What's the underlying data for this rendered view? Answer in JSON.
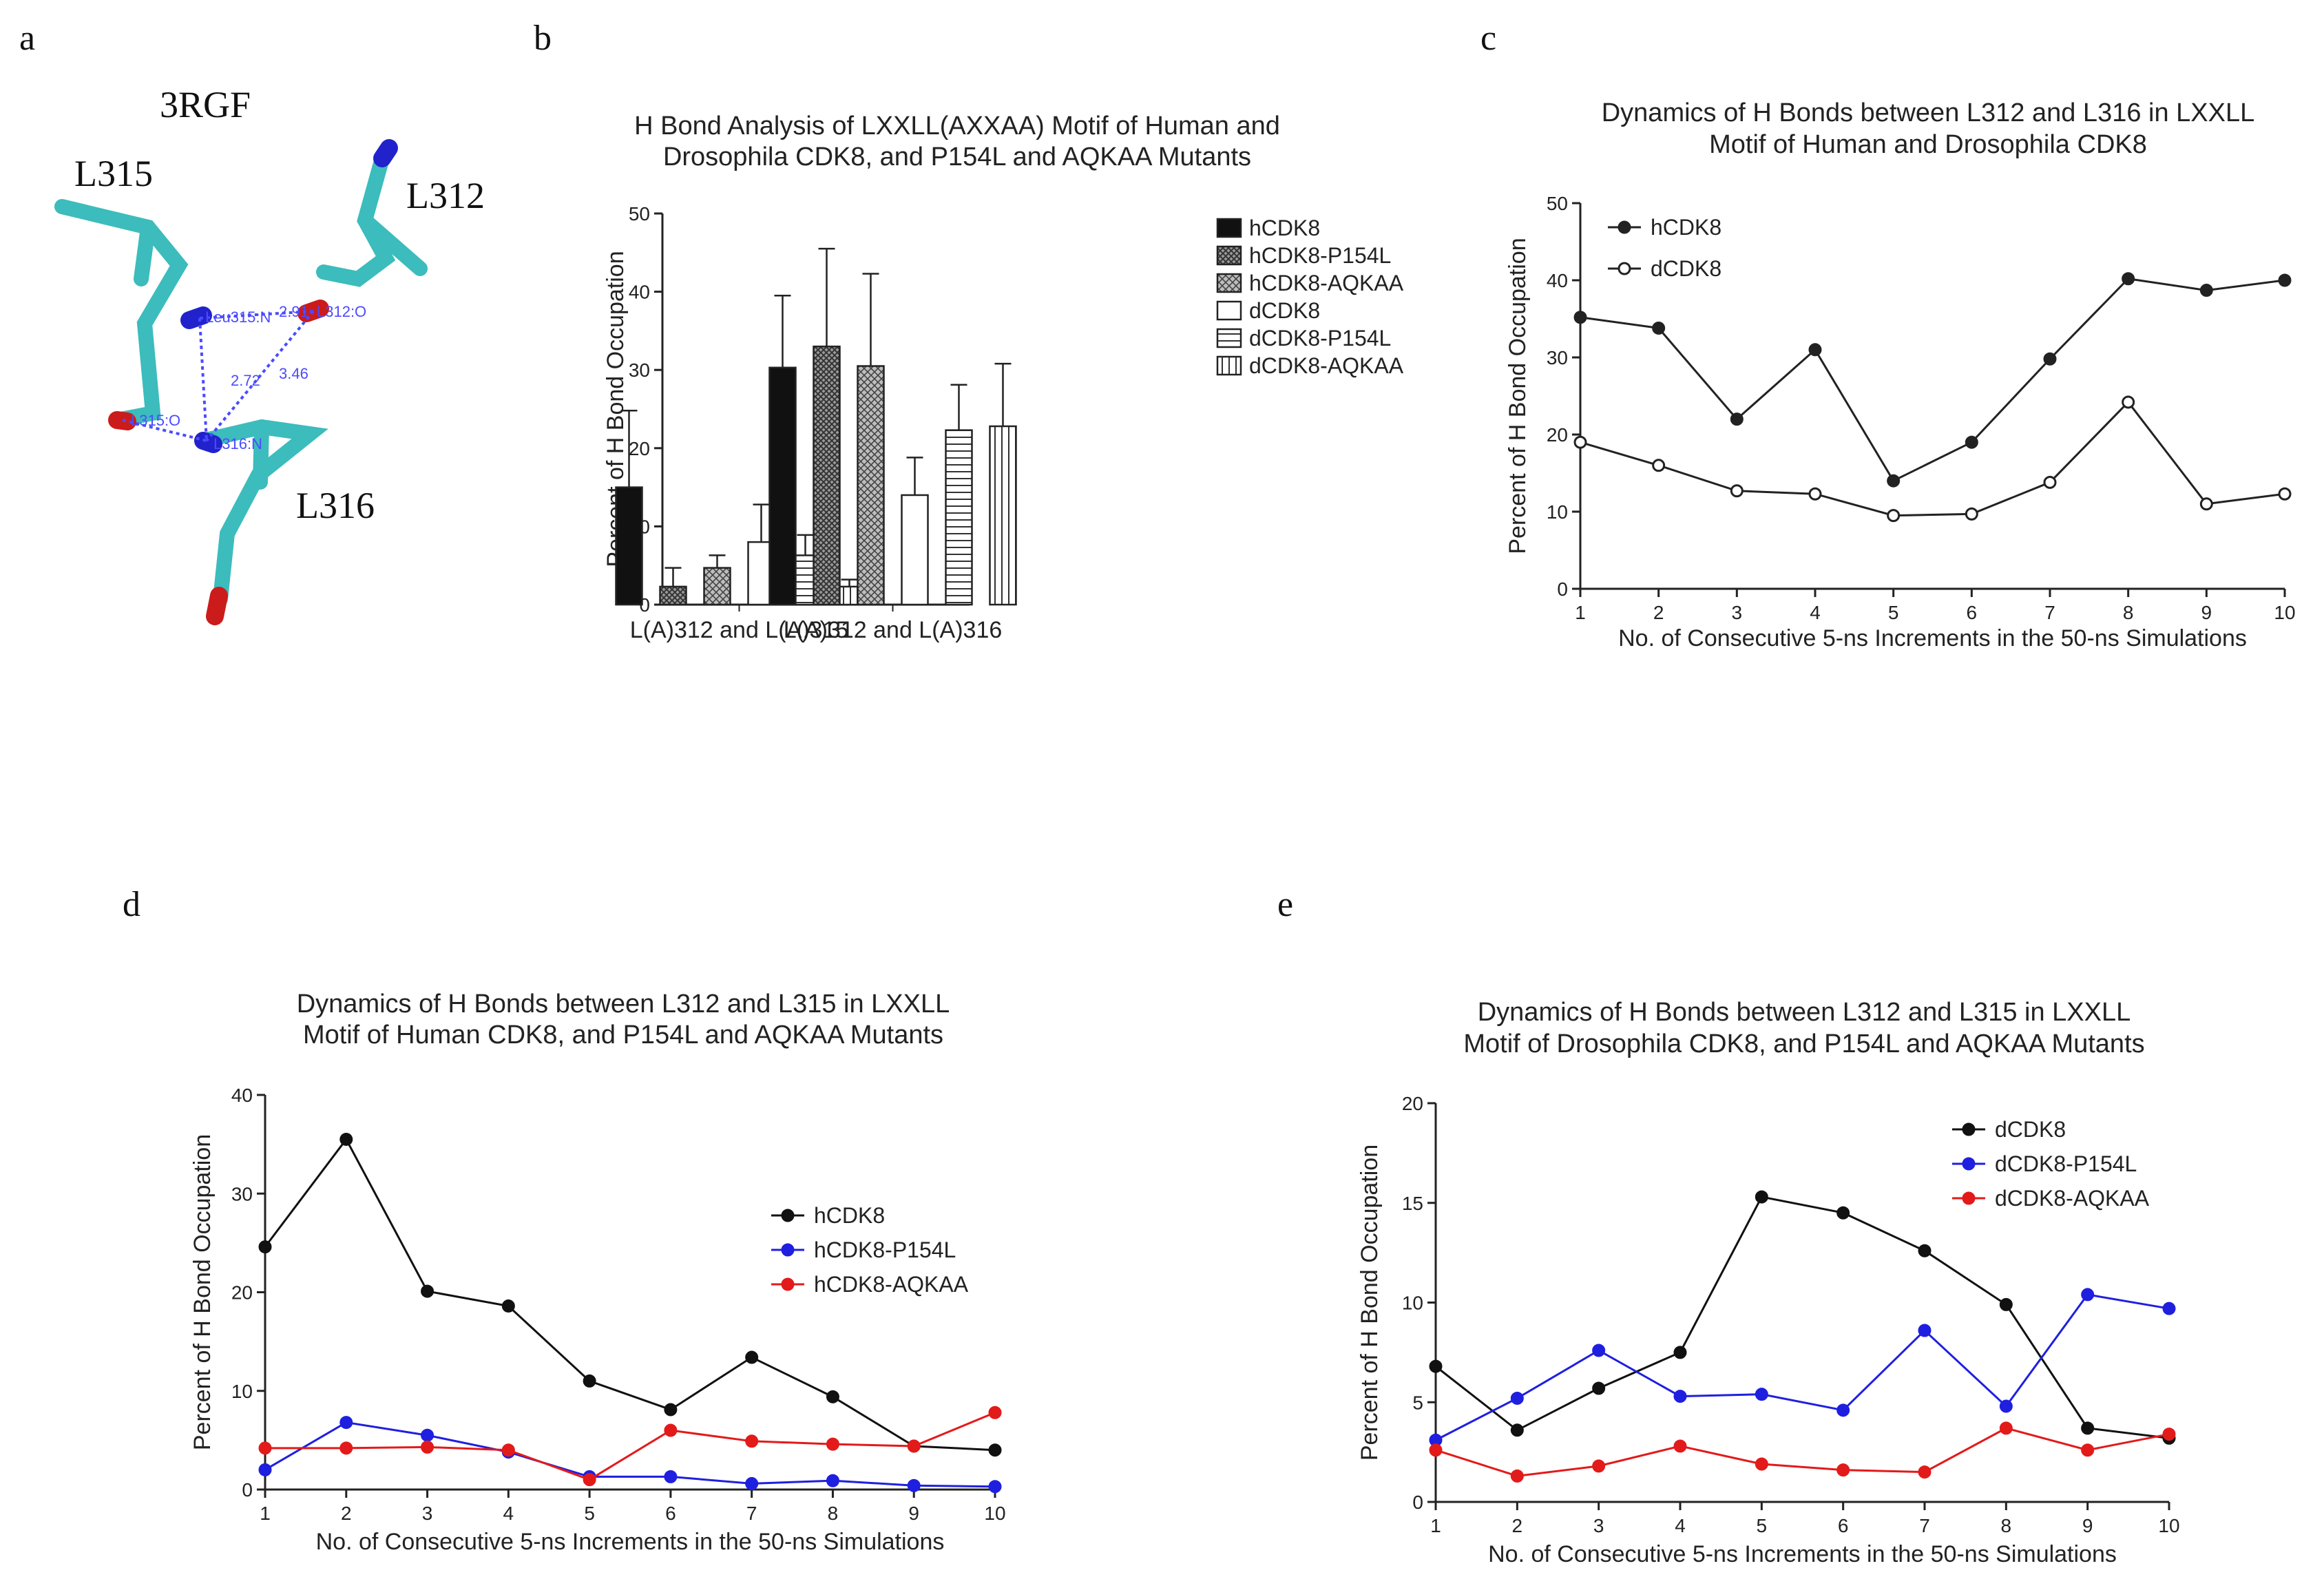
{
  "panel_letters": {
    "a": "a",
    "b": "b",
    "c": "c",
    "d": "d",
    "e": "e"
  },
  "molecule": {
    "pdb_id": "3RGF",
    "residue_labels": [
      "L315",
      "L312",
      "L316"
    ],
    "distance_labels": [
      "2.72",
      "3.46"
    ],
    "atom_labels": [
      "Leu315:N",
      "2.91",
      "L312:O",
      "L315:O",
      "L316:N"
    ],
    "colors": {
      "carbon": "#3cbcbc",
      "nitrogen": "#2222cc",
      "oxygen": "#cc1b1b",
      "hbond": "#4b4bff"
    }
  },
  "chart_data": [
    {
      "id": "b",
      "type": "bar",
      "title": [
        "H Bond Analysis of LXXLL(AXXAA) Motif of Human and",
        "Drosophila CDK8, and P154L and AQKAA Mutants"
      ],
      "xlabel": "",
      "ylabel": "Percent of H Bond Occupation",
      "ylim": [
        0,
        50
      ],
      "yticks": [
        "0",
        "10",
        "20",
        "30",
        "40",
        "50"
      ],
      "categories": [
        "L(A)312 and L(A)315",
        "L(A)312 and L(A)316"
      ],
      "series": [
        {
          "name": "hCDK8",
          "values": [
            15.0,
            30.3
          ],
          "errors": [
            9.8,
            9.2
          ],
          "pattern": "solid"
        },
        {
          "name": "hCDK8-P154L",
          "values": [
            2.3,
            33.0
          ],
          "errors": [
            2.4,
            12.5
          ],
          "pattern": "hatch-dense"
        },
        {
          "name": "hCDK8-AQKAA",
          "values": [
            4.7,
            30.5
          ],
          "errors": [
            1.6,
            11.8
          ],
          "pattern": "hatch-light"
        },
        {
          "name": "dCDK8",
          "values": [
            8.0,
            14.0
          ],
          "errors": [
            4.8,
            4.8
          ],
          "pattern": "white"
        },
        {
          "name": "dCDK8-P154L",
          "values": [
            6.3,
            22.3
          ],
          "errors": [
            2.6,
            5.8
          ],
          "pattern": "horizontal"
        },
        {
          "name": "dCDK8-AQKAA",
          "values": [
            2.3,
            22.8
          ],
          "errors": [
            0.9,
            8.0
          ],
          "pattern": "vertical"
        }
      ]
    },
    {
      "id": "c",
      "type": "line",
      "title": [
        "Dynamics of H Bonds between L312 and L316 in LXXLL",
        "Motif of Human and Drosophila CDK8"
      ],
      "xlabel": "No. of Consecutive 5-ns Increments in the 50-ns Simulations",
      "ylabel": "Percent of H Bond Occupation",
      "xlim": [
        1,
        10
      ],
      "ylim": [
        0,
        50
      ],
      "x": [
        1,
        2,
        3,
        4,
        5,
        6,
        7,
        8,
        9,
        10
      ],
      "yticks": [
        "0",
        "10",
        "20",
        "30",
        "40",
        "50"
      ],
      "xticks": [
        "1",
        "2",
        "3",
        "4",
        "5",
        "6",
        "7",
        "8",
        "9",
        "10"
      ],
      "legend_position": "top-left",
      "series": [
        {
          "name": "hCDK8",
          "values": [
            35.2,
            33.8,
            22.0,
            31.0,
            14.0,
            19.0,
            29.8,
            40.2,
            38.7,
            40.0
          ],
          "color": "#222222",
          "marker": "filled"
        },
        {
          "name": "dCDK8",
          "values": [
            19.0,
            16.0,
            12.7,
            12.3,
            9.5,
            9.7,
            13.8,
            24.2,
            11.0,
            12.3
          ],
          "color": "#222222",
          "marker": "open"
        }
      ]
    },
    {
      "id": "d",
      "type": "line",
      "title": [
        "Dynamics of H Bonds between L312 and L315 in LXXLL",
        "Motif of Human CDK8, and P154L and AQKAA Mutants"
      ],
      "xlabel": "No. of Consecutive 5-ns Increments in the 50-ns Simulations",
      "ylabel": "Percent of H Bond Occupation",
      "xlim": [
        1,
        10
      ],
      "ylim": [
        0,
        40
      ],
      "x": [
        1,
        2,
        3,
        4,
        5,
        6,
        7,
        8,
        9,
        10
      ],
      "yticks": [
        "0",
        "10",
        "20",
        "30",
        "40"
      ],
      "xticks": [
        "1",
        "2",
        "3",
        "4",
        "5",
        "6",
        "7",
        "8",
        "9",
        "10"
      ],
      "legend_position": "center-right",
      "series": [
        {
          "name": "hCDK8",
          "values": [
            24.6,
            35.5,
            20.1,
            18.6,
            11.0,
            8.1,
            13.4,
            9.4,
            4.4,
            4.0
          ],
          "color": "#111111",
          "marker": "filled"
        },
        {
          "name": "hCDK8-P154L",
          "values": [
            2.0,
            6.8,
            5.5,
            3.8,
            1.3,
            1.3,
            0.6,
            0.9,
            0.4,
            0.3
          ],
          "color": "#1f1fe0",
          "marker": "filled"
        },
        {
          "name": "hCDK8-AQKAA",
          "values": [
            4.2,
            4.2,
            4.3,
            4.0,
            1.0,
            6.0,
            4.9,
            4.6,
            4.4,
            7.8
          ],
          "color": "#e31a1a",
          "marker": "filled"
        }
      ]
    },
    {
      "id": "e",
      "type": "line",
      "title": [
        "Dynamics of H Bonds between L312 and L315 in LXXLL",
        "Motif of Drosophila CDK8, and P154L and AQKAA Mutants"
      ],
      "xlabel": "No. of Consecutive 5-ns Increments in the 50-ns Simulations",
      "ylabel": "Percent of H Bond Occupation",
      "xlim": [
        1,
        10
      ],
      "ylim": [
        0,
        20
      ],
      "x": [
        1,
        2,
        3,
        4,
        5,
        6,
        7,
        8,
        9,
        10
      ],
      "yticks": [
        "0",
        "5",
        "10",
        "15",
        "20"
      ],
      "xticks": [
        "1",
        "2",
        "3",
        "4",
        "5",
        "6",
        "7",
        "8",
        "9",
        "10"
      ],
      "legend_position": "top-right",
      "series": [
        {
          "name": "dCDK8",
          "values": [
            6.8,
            3.6,
            5.7,
            7.5,
            15.3,
            14.5,
            12.6,
            9.9,
            3.7,
            3.2
          ],
          "color": "#111111",
          "marker": "filled"
        },
        {
          "name": "dCDK8-P154L",
          "values": [
            3.1,
            5.2,
            7.6,
            5.3,
            5.4,
            4.6,
            8.6,
            4.8,
            10.4,
            9.7
          ],
          "color": "#1f1fe0",
          "marker": "filled"
        },
        {
          "name": "dCDK8-AQKAA",
          "values": [
            2.6,
            1.3,
            1.8,
            2.8,
            1.9,
            1.6,
            1.5,
            3.7,
            2.6,
            3.4
          ],
          "color": "#e31a1a",
          "marker": "filled"
        }
      ]
    }
  ]
}
